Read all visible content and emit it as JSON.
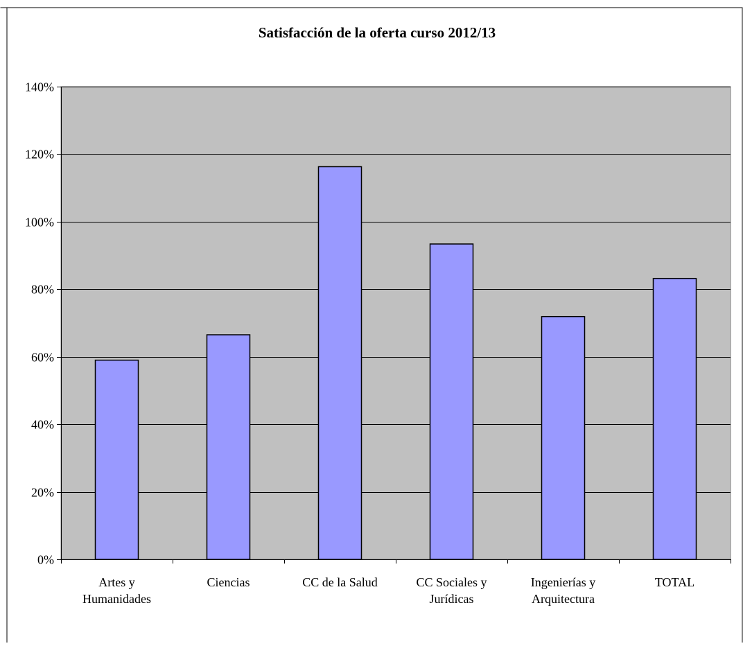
{
  "chart_data": {
    "type": "bar",
    "title": "Satisfacción de la oferta curso 2012/13",
    "categories": [
      [
        "Artes y",
        "Humanidades"
      ],
      [
        "Ciencias"
      ],
      [
        "CC de la Salud"
      ],
      [
        "CC Sociales y",
        "Jurídicas"
      ],
      [
        "Ingenierías y",
        "Arquitectura"
      ],
      [
        "TOTAL"
      ]
    ],
    "values": [
      0.59,
      0.665,
      1.163,
      0.934,
      0.719,
      0.832
    ],
    "ylim": [
      0,
      1.4
    ],
    "ytick_values": [
      0,
      0.2,
      0.4,
      0.6,
      0.8,
      1.0,
      1.2,
      1.4
    ],
    "yticks": [
      "0%",
      "20%",
      "40%",
      "60%",
      "80%",
      "100%",
      "120%",
      "140%"
    ],
    "xlabel": "",
    "ylabel": "",
    "grid": true,
    "legend": "none"
  },
  "colors": {
    "bar_fill": "#9999ff",
    "bar_stroke": "#000000",
    "plot_background": "#c0c0c0",
    "gridline": "#000000"
  }
}
